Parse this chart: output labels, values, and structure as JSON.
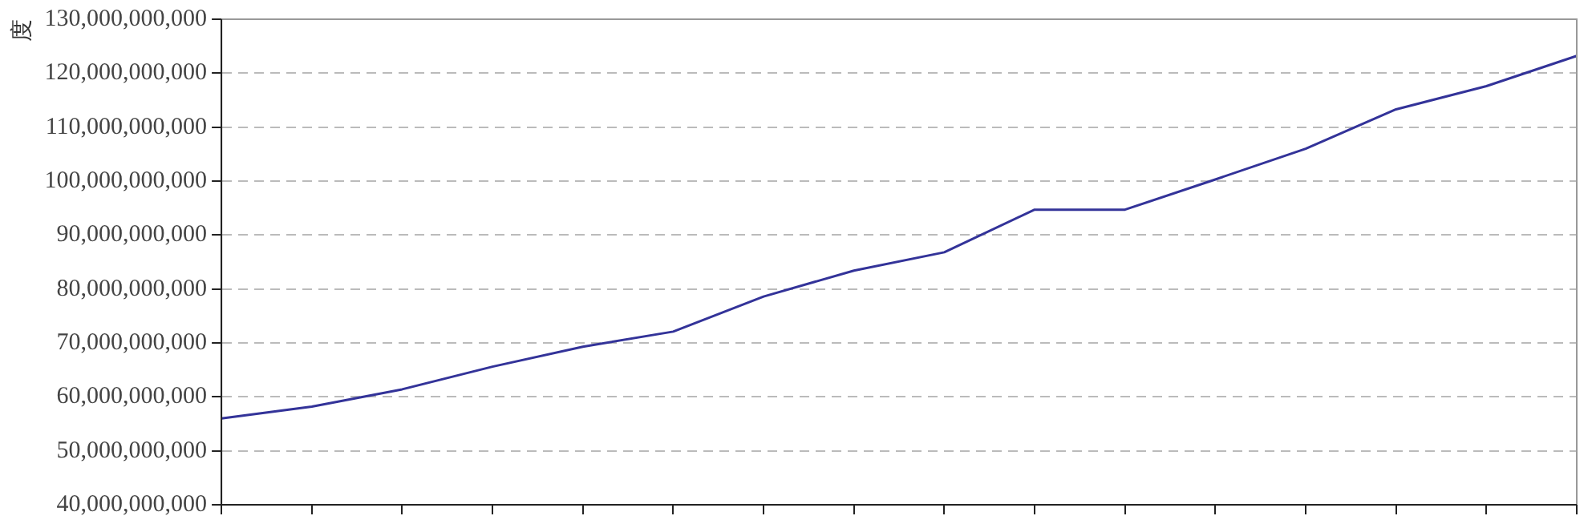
{
  "chart_data": {
    "type": "line",
    "ylabel": "度",
    "categories": [
      null,
      null,
      null,
      null,
      null,
      null,
      null,
      null,
      null,
      null,
      null,
      null,
      null,
      null,
      null,
      null
    ],
    "series": [
      {
        "color": "#333399",
        "values": [
          56000000000,
          58200000000,
          61400000000,
          65600000000,
          69300000000,
          72100000000,
          78600000000,
          83400000000,
          86800000000,
          94700000000,
          94700000000,
          100300000000,
          106000000000,
          113300000000,
          117600000000,
          123200000000
        ]
      }
    ],
    "ylim": [
      40000000000,
      130000000000
    ],
    "yticks": [
      {
        "value": 40000000000,
        "label": "40,000,000,000"
      },
      {
        "value": 50000000000,
        "label": "50,000,000,000"
      },
      {
        "value": 60000000000,
        "label": "60,000,000,000"
      },
      {
        "value": 70000000000,
        "label": "70,000,000,000"
      },
      {
        "value": 80000000000,
        "label": "80,000,000,000"
      },
      {
        "value": 90000000000,
        "label": "90,000,000,000"
      },
      {
        "value": 100000000000,
        "label": "100,000,000,000"
      },
      {
        "value": 110000000000,
        "label": "110,000,000,000"
      },
      {
        "value": 120000000000,
        "label": "120,000,000,000"
      },
      {
        "value": 130000000000,
        "label": "130,000,000,000"
      }
    ],
    "grid": "y",
    "legend": false,
    "marker": "none",
    "line_style": "solid",
    "tick_labels": "y"
  }
}
